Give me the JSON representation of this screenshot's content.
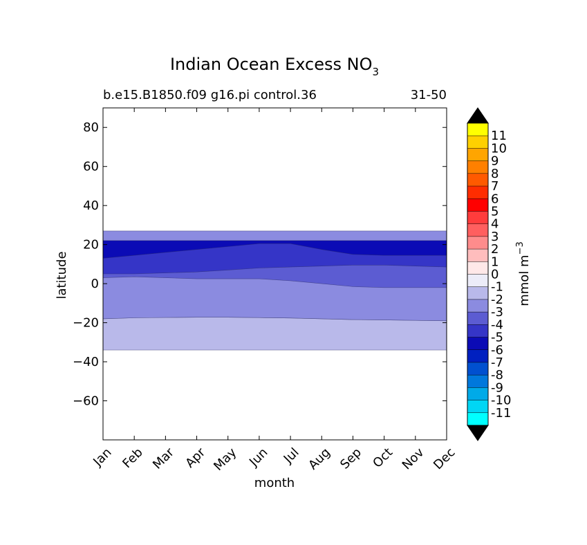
{
  "chart_data": {
    "type": "contour",
    "title": "Indian Ocean Excess NO",
    "title_subscript": "3",
    "subtitle_left": "b.e15.B1850.f09 g16.pi control.36",
    "subtitle_right": "31-50",
    "xlabel": "month",
    "ylabel": "latitude",
    "x_categories": [
      "Jan",
      "Feb",
      "Mar",
      "Apr",
      "May",
      "Jun",
      "Jul",
      "Aug",
      "Sep",
      "Oct",
      "Nov",
      "Dec"
    ],
    "ylim": [
      -80,
      90
    ],
    "y_ticks": [
      80,
      60,
      40,
      20,
      0,
      -20,
      -40,
      -60
    ],
    "y_tick_labels": [
      "80",
      "60",
      "40",
      "20",
      "0",
      "−20",
      "−40",
      "−60"
    ],
    "colorbar": {
      "label": "mmol m",
      "label_superscript": "−3",
      "levels": [
        "11",
        "10",
        "9",
        "8",
        "7",
        "6",
        "5",
        "4",
        "3",
        "2",
        "1",
        "0",
        "-1",
        "-2",
        "-3",
        "-4",
        "-5",
        "-6",
        "-7",
        "-8",
        "-9",
        "-10",
        "-11"
      ],
      "colors_top_to_bottom": [
        "#ffff00",
        "#ffd000",
        "#ffa500",
        "#ff8000",
        "#ff5a00",
        "#ff2d00",
        "#ff0000",
        "#ff3c3c",
        "#ff5f5f",
        "#ff8c8c",
        "#ffbdbd",
        "#ffe8e8",
        "#ececf8",
        "#b9b9ea",
        "#8b8be0",
        "#5c5cd2",
        "#3535c7",
        "#0b0bb5",
        "#0020c0",
        "#0050d0",
        "#0078dc",
        "#00aae8",
        "#00d6f4",
        "#00ffff"
      ],
      "extend": "both"
    },
    "regions": [
      {
        "level": -2,
        "color": "#b9b9ea",
        "bounds": {
          "lat_south": [
            -34,
            -34,
            -34,
            -34,
            -34,
            -34,
            -34,
            -34,
            -34,
            -34,
            -34,
            -34
          ],
          "lat_north": [
            -18,
            -17.5,
            -17.3,
            -17.2,
            -17.2,
            -17.4,
            -17.6,
            -18,
            -18.4,
            -18.6,
            -18.8,
            -19
          ]
        }
      },
      {
        "level": -3,
        "color": "#8b8be0",
        "bounds": {
          "lat_south": [
            -18,
            -17.5,
            -17.3,
            -17.2,
            -17.2,
            -17.4,
            -17.6,
            -18,
            -18.4,
            -18.6,
            -18.8,
            -19
          ],
          "lat_north": [
            27,
            27,
            27,
            27,
            27,
            27,
            27,
            27,
            27,
            27,
            27,
            27
          ]
        }
      },
      {
        "level": -4,
        "color": "#5c5cd2",
        "bounds": {
          "lat_south": [
            3,
            3.5,
            3,
            2.5,
            2.5,
            2.5,
            1.5,
            0,
            -1.5,
            -2,
            -2,
            -2
          ],
          "lat_north": [
            22,
            22,
            22,
            22,
            22,
            22,
            22,
            22,
            22,
            22,
            22,
            22
          ]
        }
      },
      {
        "level": -5,
        "color": "#3535c7",
        "bounds": {
          "lat_south": [
            5,
            5,
            5.5,
            6,
            7,
            8,
            8.5,
            9,
            9.5,
            9.5,
            9,
            8.5
          ],
          "lat_north": [
            22,
            22,
            22,
            22,
            22,
            22,
            22,
            22,
            22,
            22,
            22,
            22
          ]
        }
      },
      {
        "level": -6,
        "color": "#0b0bb5",
        "bounds": {
          "lat_south": [
            13,
            14.5,
            16,
            17.5,
            19,
            20.5,
            20.5,
            17.5,
            15,
            14.5,
            14.5,
            14.5
          ],
          "lat_north": [
            22,
            22,
            22,
            22,
            22,
            22,
            22,
            22,
            22,
            22,
            22,
            22
          ]
        }
      }
    ]
  }
}
